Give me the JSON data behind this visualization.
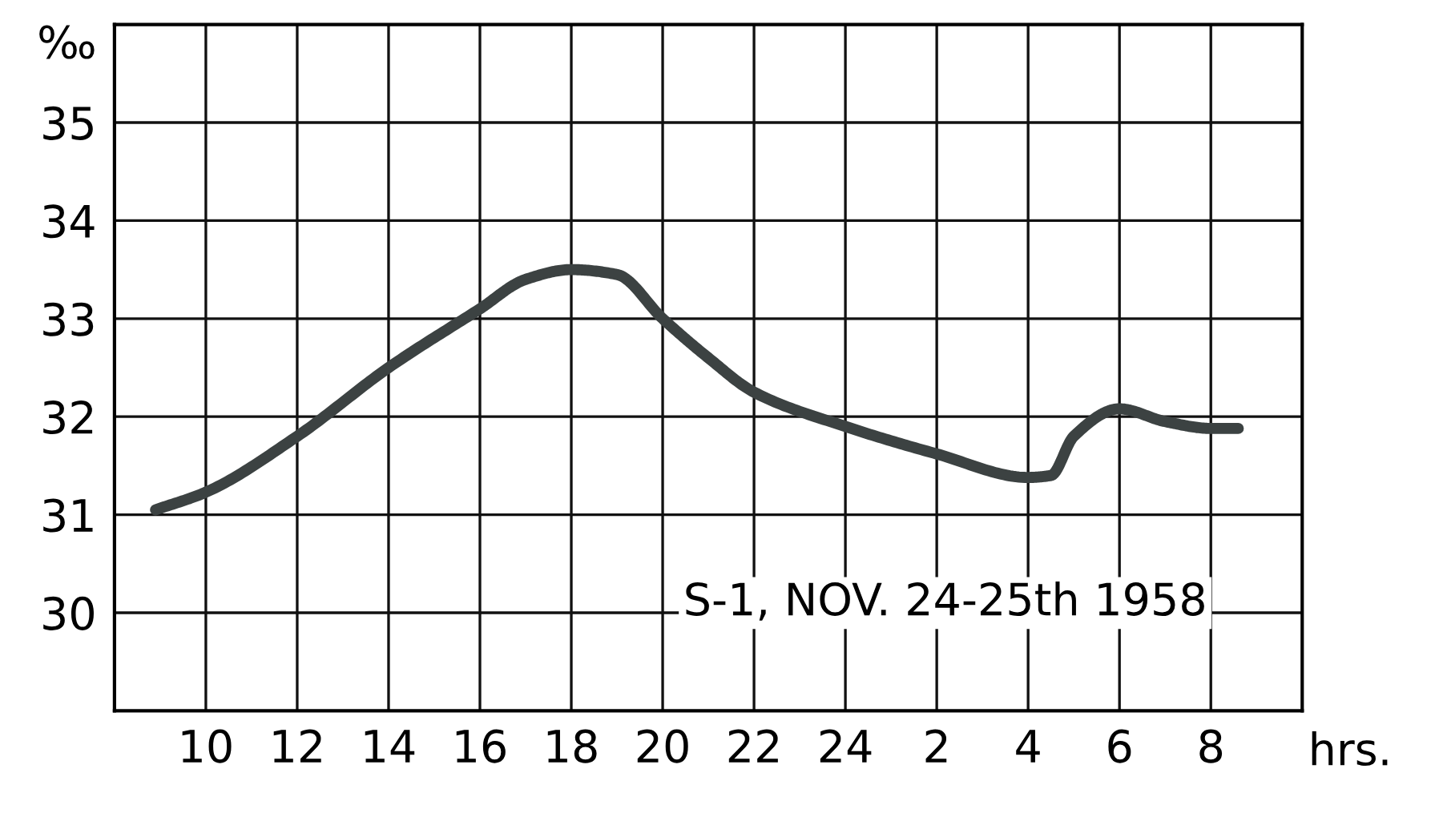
{
  "chart_data": {
    "type": "line",
    "ylabel": "‰",
    "xlabel": "hrs.",
    "annotations": [
      "S-1, NOV. 24-25th 1958"
    ],
    "x": [
      "1958-11-24T08:54",
      "1958-11-24T10:00",
      "1958-11-24T12:00",
      "1958-11-24T14:00",
      "1958-11-24T16:00",
      "1958-11-24T17:00",
      "1958-11-24T18:00",
      "1958-11-24T19:00",
      "1958-11-24T20:00",
      "1958-11-24T21:00",
      "1958-11-24T22:00",
      "1958-11-25T00:00",
      "1958-11-25T02:00",
      "1958-11-25T04:00",
      "1958-11-25T04:30",
      "1958-11-25T05:00",
      "1958-11-25T06:00",
      "1958-11-25T07:00",
      "1958-11-25T08:00",
      "1958-11-25T08:36"
    ],
    "series": [
      {
        "color": "#3c4242",
        "values": [
          31.05,
          31.23,
          31.8,
          32.5,
          33.1,
          33.4,
          33.5,
          33.45,
          33.0,
          32.6,
          32.25,
          31.9,
          31.62,
          31.38,
          31.4,
          31.8,
          32.08,
          31.95,
          31.88,
          31.88
        ]
      }
    ],
    "xlim": [
      "1958-11-24T08:00",
      "1958-11-25T10:00"
    ],
    "ylim": [
      29,
      36
    ],
    "xticks": [
      {
        "value": "1958-11-24T10:00",
        "label": "10"
      },
      {
        "value": "1958-11-24T12:00",
        "label": "12"
      },
      {
        "value": "1958-11-24T14:00",
        "label": "14"
      },
      {
        "value": "1958-11-24T16:00",
        "label": "16"
      },
      {
        "value": "1958-11-24T18:00",
        "label": "18"
      },
      {
        "value": "1958-11-24T20:00",
        "label": "20"
      },
      {
        "value": "1958-11-24T22:00",
        "label": "22"
      },
      {
        "value": "1958-11-25T00:00",
        "label": "24"
      },
      {
        "value": "1958-11-25T02:00",
        "label": "2"
      },
      {
        "value": "1958-11-25T04:00",
        "label": "4"
      },
      {
        "value": "1958-11-25T06:00",
        "label": "6"
      },
      {
        "value": "1958-11-25T08:00",
        "label": "8"
      }
    ],
    "yticks": [
      30,
      31,
      32,
      33,
      34,
      35
    ],
    "grid": true,
    "marker": "none",
    "line_style": "solid"
  }
}
